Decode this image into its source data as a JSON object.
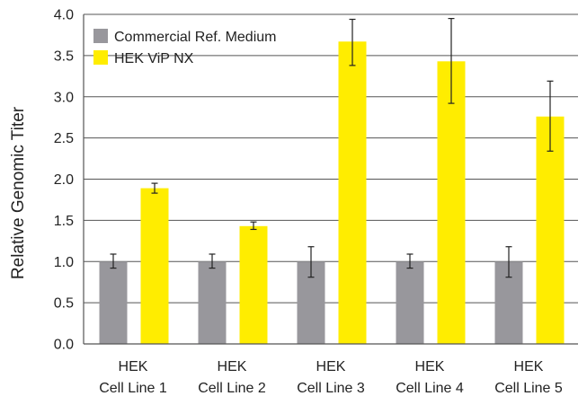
{
  "chart_data": {
    "type": "bar",
    "title": "",
    "xlabel": "",
    "ylabel": "Relative Genomic Titer",
    "ylim": [
      0,
      4.0
    ],
    "yticks": [
      "0.0",
      "0.5",
      "1.0",
      "1.5",
      "2.0",
      "2.5",
      "3.0",
      "3.5",
      "4.0"
    ],
    "ytick_values": [
      0,
      0.5,
      1.0,
      1.5,
      2.0,
      2.5,
      3.0,
      3.5,
      4.0
    ],
    "grid": true,
    "legend_position": "top-left",
    "categories": [
      {
        "line1": "HEK",
        "line2": "Cell Line 1"
      },
      {
        "line1": "HEK",
        "line2": "Cell Line 2"
      },
      {
        "line1": "HEK",
        "line2": "Cell Line 3"
      },
      {
        "line1": "HEK",
        "line2": "Cell Line 4"
      },
      {
        "line1": "HEK",
        "line2": "Cell Line 5"
      }
    ],
    "series": [
      {
        "name": "Commercial Ref. Medium",
        "color": "#98979c",
        "values": [
          1.0,
          1.0,
          1.0,
          1.0,
          1.0
        ],
        "error_low": [
          0.92,
          0.92,
          0.81,
          0.92,
          0.81
        ],
        "error_high": [
          1.09,
          1.09,
          1.18,
          1.09,
          1.18
        ]
      },
      {
        "name": "HEK ViP NX",
        "color": "#ffed00",
        "values": [
          1.89,
          1.43,
          3.67,
          3.43,
          2.76
        ],
        "error_low": [
          1.83,
          1.39,
          3.38,
          2.92,
          2.34
        ],
        "error_high": [
          1.95,
          1.48,
          3.94,
          3.95,
          3.19
        ]
      }
    ]
  }
}
